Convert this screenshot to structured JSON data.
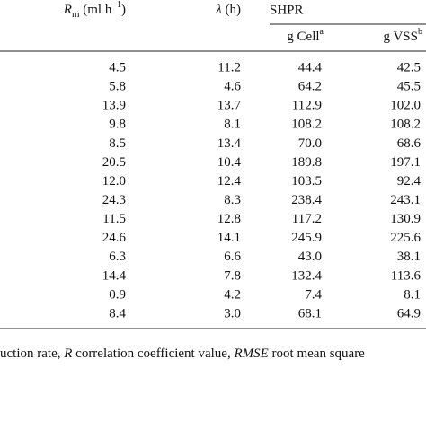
{
  "header": {
    "rm": {
      "symbol": "R",
      "sub": "m",
      "unit": " (ml h",
      "sup": "−1",
      "close": ")"
    },
    "lambda": {
      "symbol": "λ",
      "unit": " (h)"
    },
    "group": "SHPR",
    "cell": {
      "text": "g Cell",
      "sup": "a"
    },
    "vss": {
      "text": "g VSS",
      "sup": "b"
    }
  },
  "table": {
    "rows": [
      [
        "4.5",
        "11.2",
        "44.4",
        "42.5"
      ],
      [
        "5.8",
        "4.6",
        "64.2",
        "45.5"
      ],
      [
        "13.9",
        "13.7",
        "112.9",
        "102.0"
      ],
      [
        "9.8",
        "8.1",
        "108.2",
        "108.2"
      ],
      [
        "8.5",
        "13.4",
        "70.0",
        "68.6"
      ],
      [
        "20.5",
        "10.4",
        "189.8",
        "197.1"
      ],
      [
        "12.0",
        "12.4",
        "103.5",
        "92.4"
      ],
      [
        "24.3",
        "8.3",
        "238.4",
        "243.1"
      ],
      [
        "11.5",
        "12.8",
        "117.2",
        "130.9"
      ],
      [
        "24.6",
        "14.1",
        "245.9",
        "225.6"
      ],
      [
        "6.3",
        "6.6",
        "43.0",
        "38.1"
      ],
      [
        "14.4",
        "7.8",
        "132.4",
        "113.6"
      ],
      [
        "0.9",
        "4.2",
        "7.4",
        "8.1"
      ],
      [
        "8.4",
        "3.0",
        "68.1",
        "64.9"
      ]
    ]
  },
  "footnote": {
    "parts": [
      "uction rate, ",
      "R",
      " correlation coefficient value, ",
      "RMSE",
      " root mean square"
    ]
  }
}
